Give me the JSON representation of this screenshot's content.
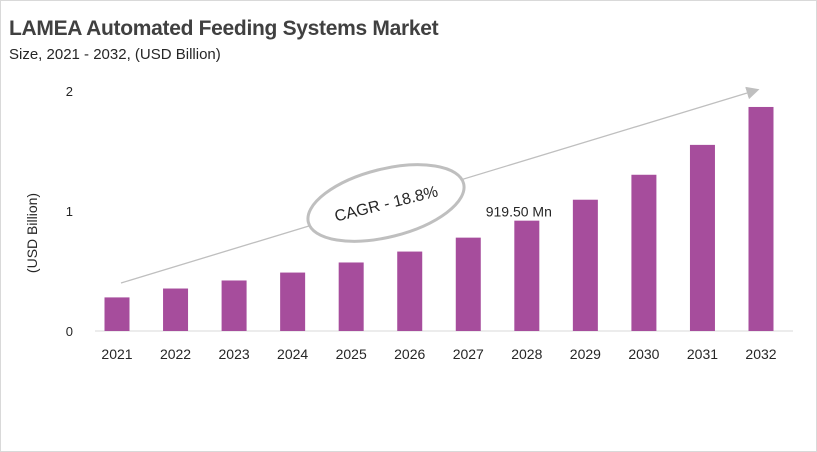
{
  "chart_data": {
    "type": "bar",
    "title": "LAMEA Automated Feeding Systems Market",
    "subtitle": "Size, 2021 - 2032, (USD Billion)",
    "ylabel": "(USD Billion)",
    "xlabel": "",
    "categories": [
      "2021",
      "2022",
      "2023",
      "2024",
      "2025",
      "2026",
      "2027",
      "2028",
      "2029",
      "2030",
      "2031",
      "2032"
    ],
    "values": [
      0.28,
      0.354,
      0.421,
      0.487,
      0.571,
      0.662,
      0.778,
      0.9195,
      1.094,
      1.302,
      1.551,
      1.867
    ],
    "ylim": [
      0,
      2
    ],
    "yticks": [
      "0",
      "1",
      "2"
    ],
    "grid": false,
    "bar_color": "#a64d9c",
    "annotations": {
      "data_label": "919.50 Mn",
      "data_label_category": "2028",
      "cagr": "CAGR - 18.8%"
    }
  }
}
